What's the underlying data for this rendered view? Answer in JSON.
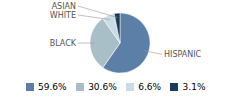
{
  "chart_data": {
    "type": "pie",
    "categories": [
      "HISPANIC",
      "BLACK",
      "WHITE",
      "ASIAN"
    ],
    "values": [
      59.6,
      30.6,
      6.6,
      3.1
    ],
    "value_labels": [
      "59.6%",
      "30.6%",
      "6.6%",
      "3.1%"
    ],
    "colors": [
      "#5b7fa6",
      "#a8bfc8",
      "#c8dce8",
      "#1c3a5a"
    ],
    "legend": "bottom"
  }
}
